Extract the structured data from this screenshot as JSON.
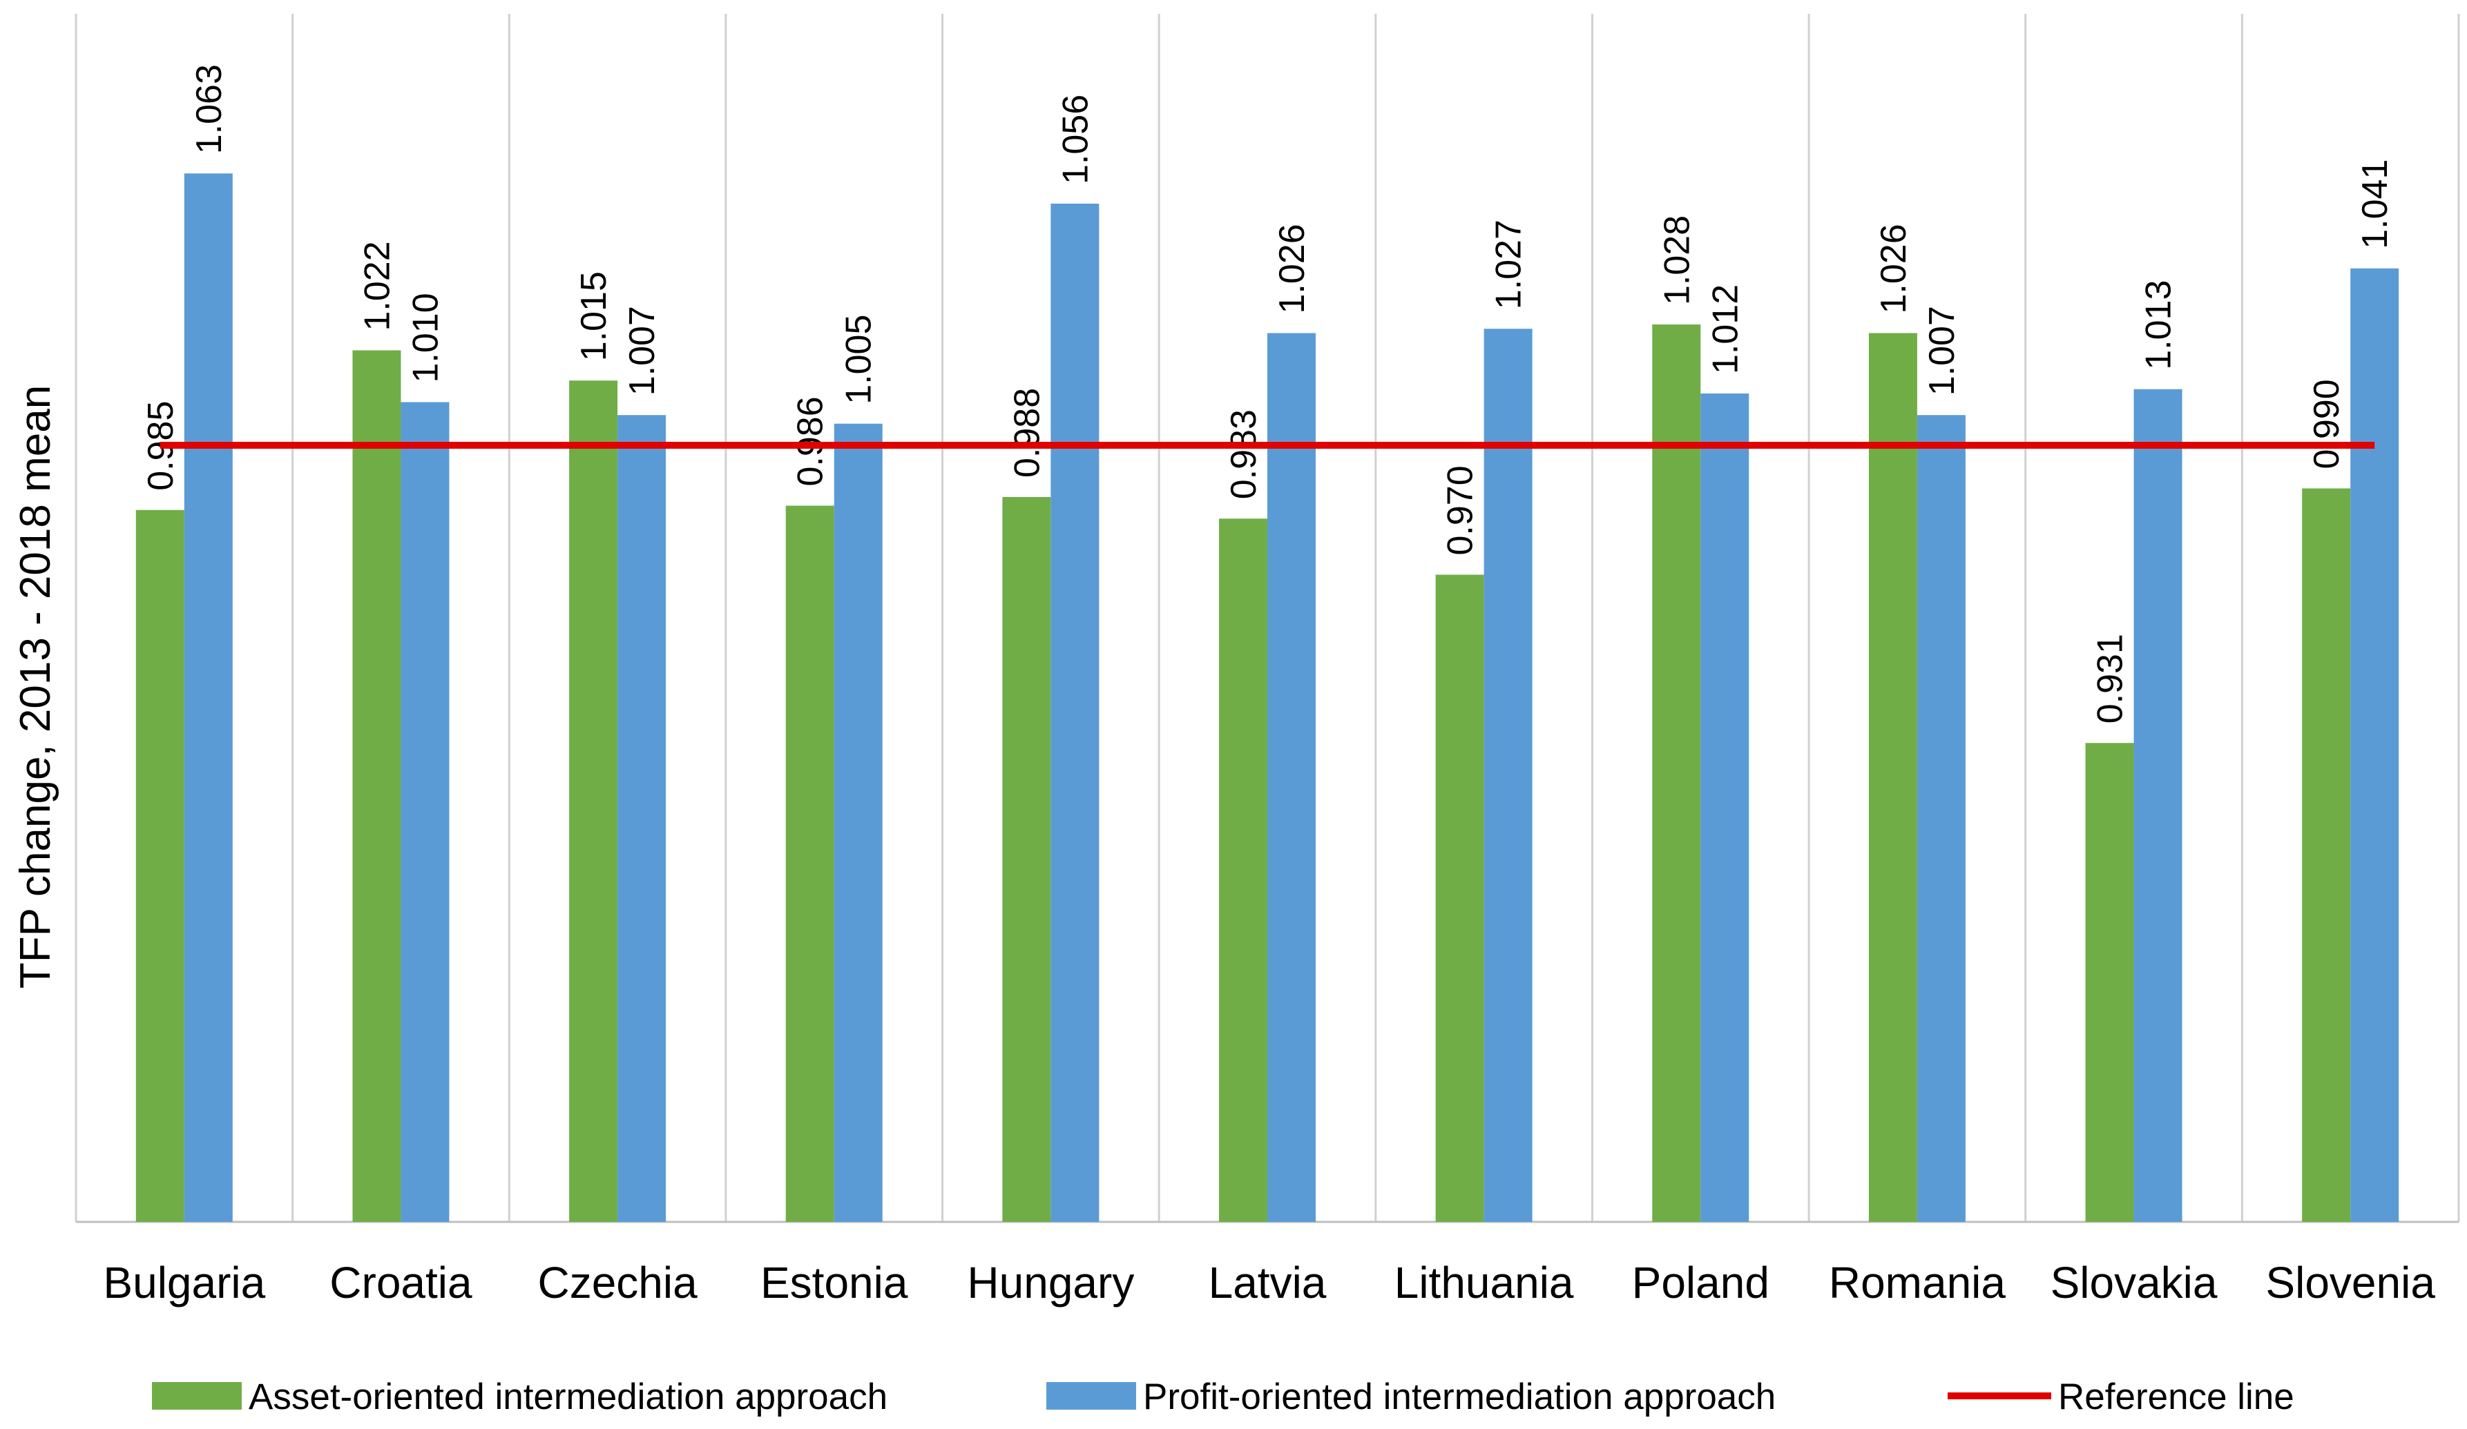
{
  "chart_data": {
    "type": "bar",
    "title": "",
    "xlabel": "",
    "ylabel": "TFP change, 2013 - 2018 mean",
    "ylim": [
      0.82,
      1.1
    ],
    "grid": "vertical category separators",
    "legend_position": "bottom",
    "categories": [
      "Bulgaria",
      "Croatia",
      "Czechia",
      "Estonia",
      "Hungary",
      "Latvia",
      "Lithuania",
      "Poland",
      "Romania",
      "Slovakia",
      "Slovenia"
    ],
    "series": [
      {
        "name": "Asset-oriented intermediation approach",
        "color": "#70ad47",
        "values": [
          0.985,
          1.022,
          1.015,
          0.986,
          0.988,
          0.983,
          0.97,
          1.028,
          1.026,
          0.931,
          0.99
        ],
        "labels": [
          "0.985",
          "1.022",
          "1.015",
          "0.986",
          "0.988",
          "0.983",
          "0.970",
          "1.028",
          "1.026",
          "0.931",
          "0.990"
        ]
      },
      {
        "name": "Profit-oriented intermediation approach",
        "color": "#5b9bd5",
        "values": [
          1.063,
          1.01,
          1.007,
          1.005,
          1.056,
          1.026,
          1.027,
          1.012,
          1.007,
          1.013,
          1.041
        ],
        "labels": [
          "1.063",
          "1.010",
          "1.007",
          "1.005",
          "1.056",
          "1.026",
          "1.027",
          "1.012",
          "1.007",
          "1.013",
          "1.041"
        ]
      }
    ],
    "reference_line": {
      "name": "Reference line",
      "color": "#e00000",
      "value": 1.0
    }
  }
}
